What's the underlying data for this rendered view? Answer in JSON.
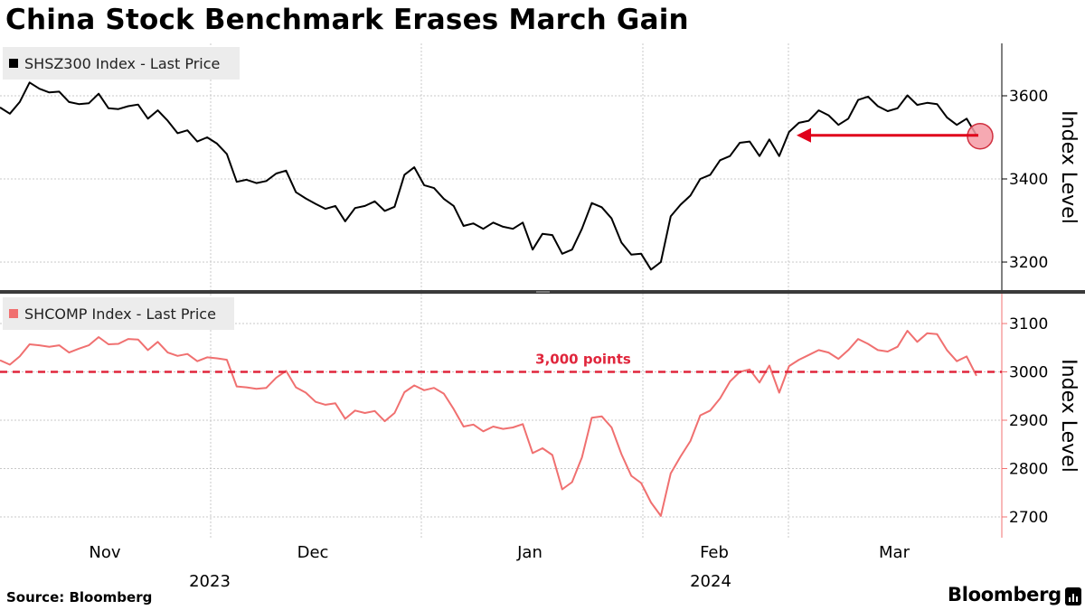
{
  "title": "China Stock Benchmark Erases March Gain",
  "source": "Source: Bloomberg",
  "brand": "Bloomberg",
  "colors": {
    "top_series": "#000000",
    "bottom_series": "#f07070",
    "arrow": "#e0001a",
    "reference_line": "#e0263c",
    "grid": "#c8c8c8",
    "legend_bg": "#ececec",
    "bottom_axis": "#f07070"
  },
  "chart_data": [
    {
      "type": "line",
      "series": [
        {
          "name": "SHSZ300 Index - Last Price",
          "values": [
            3572,
            3557,
            3585,
            3632,
            3617,
            3608,
            3610,
            3585,
            3580,
            3582,
            3605,
            3570,
            3568,
            3575,
            3579,
            3545,
            3565,
            3540,
            3510,
            3517,
            3490,
            3500,
            3485,
            3460,
            3393,
            3398,
            3390,
            3395,
            3413,
            3420,
            3368,
            3353,
            3340,
            3328,
            3335,
            3298,
            3330,
            3335,
            3346,
            3323,
            3333,
            3410,
            3428,
            3385,
            3378,
            3352,
            3335,
            3287,
            3293,
            3280,
            3295,
            3285,
            3280,
            3295,
            3230,
            3268,
            3265,
            3220,
            3230,
            3280,
            3342,
            3332,
            3305,
            3247,
            3218,
            3220,
            3182,
            3200,
            3310,
            3338,
            3360,
            3400,
            3410,
            3445,
            3455,
            3487,
            3490,
            3455,
            3495,
            3455,
            3513,
            3535,
            3540,
            3565,
            3553,
            3530,
            3545,
            3590,
            3598,
            3575,
            3563,
            3570,
            3601,
            3578,
            3583,
            3580,
            3548,
            3530,
            3545,
            3505
          ]
        }
      ],
      "y_ticks": [
        3200,
        3400,
        3600
      ],
      "ylim": [
        3120,
        3720
      ],
      "ylabel": "Index Level",
      "annotation": "arrow from 2024-02-29 level to latest close (~3,500)"
    },
    {
      "type": "line",
      "series": [
        {
          "name": "SHCOMP Index - Last Price",
          "values": [
            3024,
            3015,
            3032,
            3057,
            3055,
            3052,
            3055,
            3040,
            3048,
            3055,
            3072,
            3057,
            3058,
            3068,
            3067,
            3045,
            3062,
            3040,
            3033,
            3037,
            3022,
            3030,
            3028,
            3025,
            2970,
            2968,
            2965,
            2967,
            2988,
            3002,
            2968,
            2957,
            2938,
            2932,
            2935,
            2903,
            2920,
            2915,
            2919,
            2898,
            2915,
            2958,
            2972,
            2962,
            2967,
            2955,
            2923,
            2887,
            2891,
            2877,
            2887,
            2882,
            2885,
            2892,
            2832,
            2842,
            2828,
            2757,
            2772,
            2823,
            2905,
            2908,
            2885,
            2830,
            2785,
            2770,
            2730,
            2702,
            2790,
            2825,
            2857,
            2910,
            2920,
            2945,
            2980,
            3000,
            3005,
            2978,
            3013,
            2957,
            3012,
            3025,
            3035,
            3045,
            3040,
            3027,
            3045,
            3068,
            3058,
            3045,
            3042,
            3052,
            3085,
            3062,
            3080,
            3078,
            3045,
            3022,
            3032,
            2992
          ]
        }
      ],
      "y_ticks": [
        2700,
        2800,
        2900,
        3000,
        3100
      ],
      "ylim": [
        2680,
        3160
      ],
      "ylabel": "Index Level",
      "reference_line": {
        "value": 3000,
        "label": "3,000 points"
      }
    }
  ],
  "x_axis": {
    "months": [
      {
        "label": "Nov",
        "year": "2023"
      },
      {
        "label": "Dec",
        "year": ""
      },
      {
        "label": "Jan",
        "year": ""
      },
      {
        "label": "Feb",
        "year": "2024"
      },
      {
        "label": "Mar",
        "year": ""
      }
    ]
  }
}
